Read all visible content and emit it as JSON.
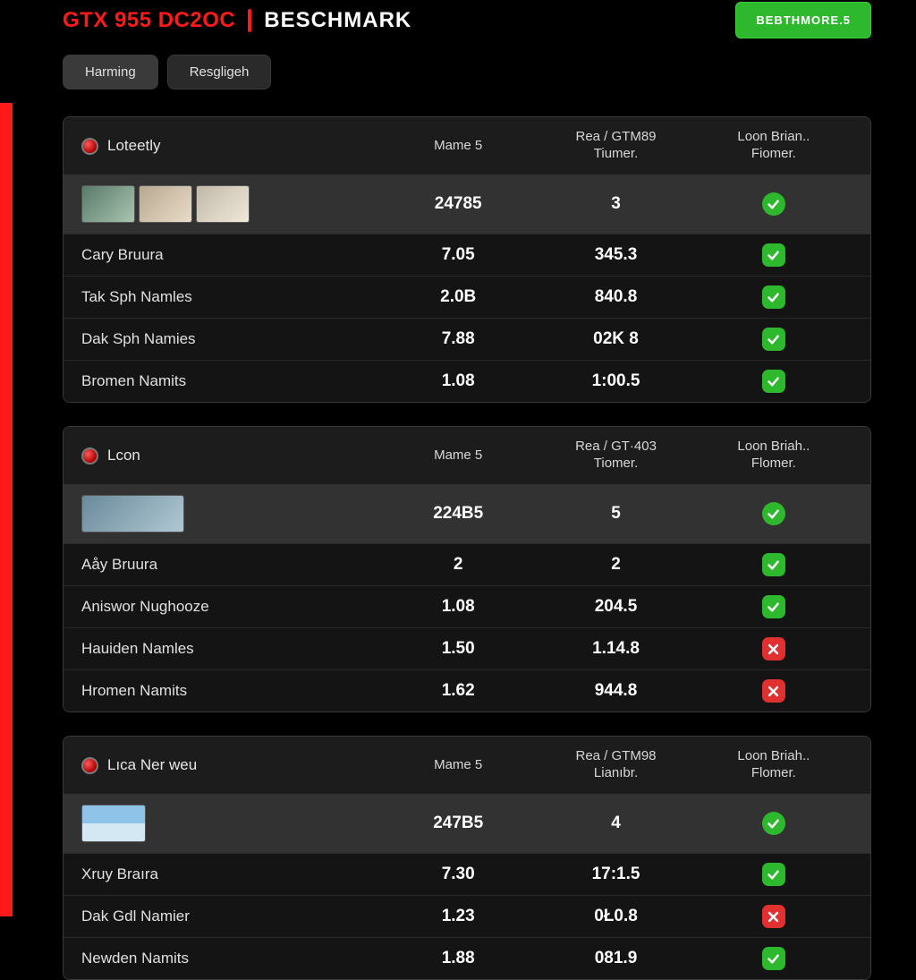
{
  "header": {
    "model": "GTX 955 DC2OC",
    "section": "BESCHMARK",
    "download": "BEBTHMORE.5"
  },
  "tabs": [
    {
      "label": "Harming",
      "active": true
    },
    {
      "label": "Resgligeh",
      "active": false
    }
  ],
  "colors": {
    "accent": "#ff1a1a",
    "ok": "#2db82d",
    "no": "#e03030",
    "bg": "#000000",
    "panel": "#141414",
    "row_highlight": "#323232"
  },
  "panels": [
    {
      "title": "Loteetly",
      "columns": [
        "Mame 5",
        "Rea / GTM89\nTiumer.",
        "Loon Brian..\nFiomer."
      ],
      "feature": {
        "thumbs": 3,
        "v1": "24785",
        "v2": "3",
        "status": "ok_circle"
      },
      "rows": [
        {
          "name": "Cary Bruura",
          "v1": "7.05",
          "v2": "345.3",
          "status": "ok"
        },
        {
          "name": "Tak Sph Namles",
          "v1": "2.0B",
          "v2": "840.8",
          "status": "ok"
        },
        {
          "name": "Dak Sph Namies",
          "v1": "7.88",
          "v2": "02K 8",
          "status": "ok"
        },
        {
          "name": "Bromen Namits",
          "v1": "1.08",
          "v2": "1:00.5",
          "status": "ok"
        }
      ]
    },
    {
      "title": "Lcon",
      "columns": [
        "Mame 5",
        "Rea / GT·403\nTiomer.",
        "Loon Briah..\nFlomer."
      ],
      "feature": {
        "thumbs": 1,
        "v1": "224B5",
        "v2": "5",
        "status": "ok_circle"
      },
      "rows": [
        {
          "name": "Aåy Bruura",
          "v1": "2",
          "v2": "2",
          "status": "ok"
        },
        {
          "name": "Aniswor Nughooze",
          "v1": "1.08",
          "v2": "204.5",
          "status": "ok"
        },
        {
          "name": "Hauiden Namles",
          "v1": "1.50",
          "v2": "1.14.8",
          "status": "no"
        },
        {
          "name": "Hromen Namits",
          "v1": "1.62",
          "v2": "944.8",
          "status": "no"
        }
      ]
    },
    {
      "title": "Lıca Ner weu",
      "columns": [
        "Mame 5",
        "Rea / GTM98\nLianıbr.",
        "Loon Briah..\nFlomer."
      ],
      "feature": {
        "thumbs": "sky",
        "v1": "247B5",
        "v2": "4",
        "status": "ok_circle"
      },
      "rows": [
        {
          "name": "Xruy Braıra",
          "v1": "7.30",
          "v2": "17:1.5",
          "status": "ok"
        },
        {
          "name": "Dak Gdl Namier",
          "v1": "1.23",
          "v2": "0Ł0.8",
          "status": "no"
        },
        {
          "name": "Newden Namits",
          "v1": "1.88",
          "v2": "081.9",
          "status": "ok"
        }
      ]
    }
  ]
}
